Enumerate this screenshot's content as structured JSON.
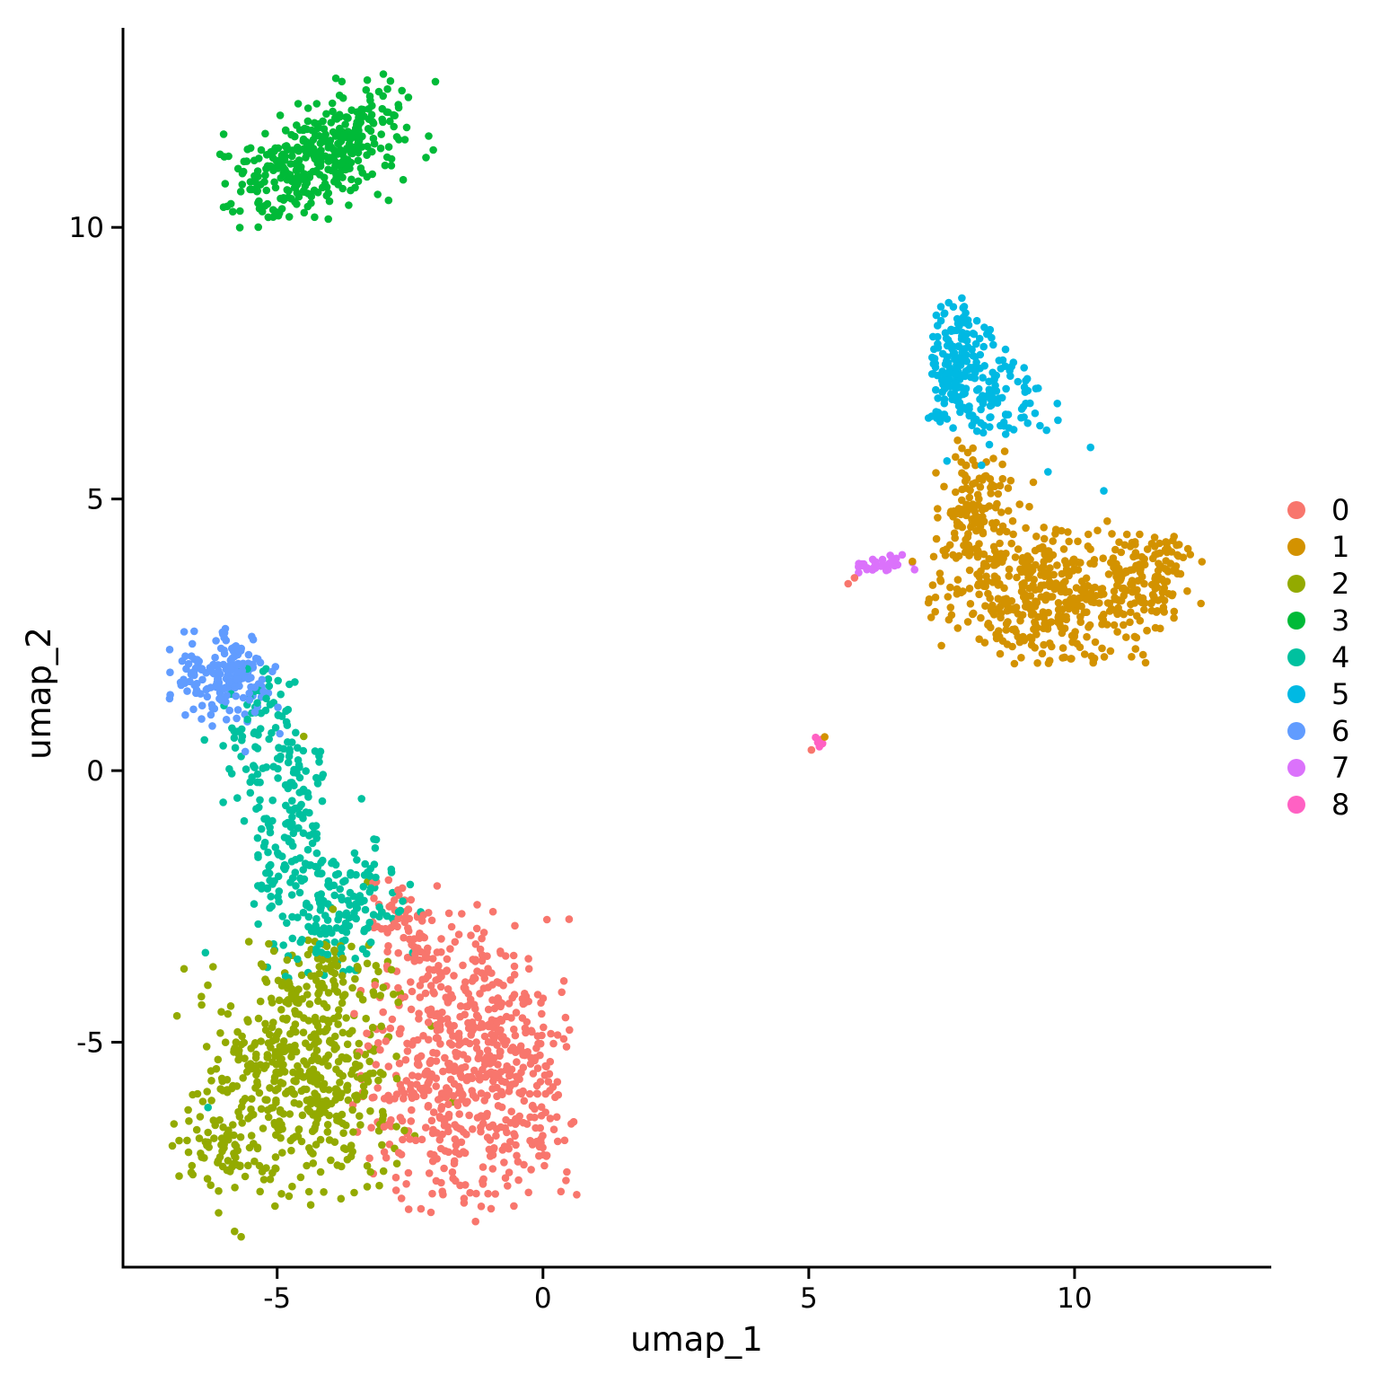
{
  "chart_data": {
    "type": "scatter",
    "title": "",
    "xlabel": "umap_1",
    "ylabel": "umap_2",
    "xlim": [
      -7.9,
      13.7
    ],
    "ylim": [
      -9.14,
      13.64
    ],
    "xticks": [
      -5,
      0,
      5,
      10
    ],
    "yticks": [
      -5,
      0,
      5,
      10
    ],
    "grid": false,
    "background": "#ffffff",
    "axis_color": "#000000",
    "point_radius_px": 4.3,
    "legend_position": "right",
    "legend_title": "",
    "clusters": [
      {
        "label": "0",
        "color": "#F8766D",
        "n": 723,
        "components": [
          {
            "cx": -1.35,
            "cy": -5.6,
            "sx": 1.05,
            "sy": 1.15,
            "rot": 0,
            "n": 600,
            "clip": [
              -3.6,
              0.65,
              -8.35,
              -1.85
            ]
          },
          {
            "cx": -2.6,
            "cy": -2.75,
            "sx": 0.32,
            "sy": 0.55,
            "rot": 20,
            "n": 60,
            "clip": [
              -3.4,
              -1.7,
              -3.9,
              -1.9
            ]
          },
          {
            "cx": -1.6,
            "cy": -3.6,
            "sx": 0.55,
            "sy": 0.5,
            "rot": 0,
            "n": 60,
            "clip": [
              -3.0,
              -0.3,
              -4.8,
              -2.4
            ]
          }
        ],
        "outliers": [
          [
            5.05,
            0.38
          ],
          [
            5.74,
            3.44
          ],
          [
            5.86,
            3.55
          ]
        ]
      },
      {
        "label": "1",
        "color": "#D39200",
        "n": 673,
        "components": [
          {
            "cx": 8.15,
            "cy": 4.9,
            "sx": 0.38,
            "sy": 0.62,
            "rot": 0,
            "n": 120,
            "clip": [
              7.3,
              9.3,
              3.9,
              5.95
            ]
          },
          {
            "cx": 9.5,
            "cy": 3.15,
            "sx": 1.05,
            "sy": 0.68,
            "rot": -8,
            "n": 430,
            "clip": [
              7.2,
              12.0,
              1.95,
              5.2
            ]
          },
          {
            "cx": 11.65,
            "cy": 3.6,
            "sx": 0.6,
            "sy": 0.45,
            "rot": 30,
            "n": 120,
            "clip": [
              10.2,
              12.45,
              2.4,
              4.35
            ]
          }
        ],
        "outliers": [
          [
            5.3,
            0.62
          ],
          [
            6.95,
            3.85
          ],
          [
            7.8,
            6.08
          ]
        ]
      },
      {
        "label": "2",
        "color": "#93AA00",
        "n": 595,
        "components": [
          {
            "cx": -4.6,
            "cy": -5.7,
            "sx": 0.95,
            "sy": 1.0,
            "rot": 0,
            "n": 470,
            "clip": [
              -7.0,
              -2.4,
              -8.6,
              -3.2
            ]
          },
          {
            "cx": -6.05,
            "cy": -6.9,
            "sx": 0.4,
            "sy": 0.45,
            "rot": -30,
            "n": 50,
            "clip": [
              -7.0,
              -5.2,
              -7.8,
              -5.9
            ]
          },
          {
            "cx": -4.1,
            "cy": -3.8,
            "sx": 0.75,
            "sy": 0.45,
            "rot": 0,
            "n": 70,
            "clip": [
              -5.8,
              -2.6,
              -4.6,
              -2.9
            ]
          }
        ],
        "outliers": [
          [
            -3.95,
            -2.55
          ],
          [
            -3.3,
            -2.05
          ],
          [
            -2.1,
            -4.7
          ],
          [
            -1.7,
            -6.1
          ],
          [
            -4.5,
            0.63
          ]
        ]
      },
      {
        "label": "3",
        "color": "#00BA38",
        "n": 390,
        "components": [
          {
            "cx": -4.15,
            "cy": 11.35,
            "sx": 1.0,
            "sy": 0.43,
            "rot": 28,
            "n": 390,
            "clip": [
              -6.25,
              -2.0,
              9.95,
              12.95
            ]
          }
        ],
        "outliers": []
      },
      {
        "label": "4",
        "color": "#00C19F",
        "n": 374,
        "components": [
          {
            "cx": -5.3,
            "cy": 0.75,
            "sx": 0.42,
            "sy": 0.6,
            "rot": 0,
            "n": 70,
            "clip": [
              -6.4,
              -4.3,
              -0.6,
              2.3
            ]
          },
          {
            "cx": -4.75,
            "cy": -0.9,
            "sx": 0.45,
            "sy": 0.85,
            "rot": -12,
            "n": 130,
            "clip": [
              -5.9,
              -3.4,
              -2.6,
              0.9
            ]
          },
          {
            "cx": -3.95,
            "cy": -2.6,
            "sx": 0.62,
            "sy": 0.55,
            "rot": 0,
            "n": 170,
            "clip": [
              -5.6,
              -2.3,
              -3.95,
              -1.2
            ]
          }
        ],
        "outliers": [
          [
            -6.3,
            -6.2
          ],
          [
            -2.45,
            -3.35
          ],
          [
            -2.3,
            -2.6
          ],
          [
            -6.35,
            -3.35
          ]
        ]
      },
      {
        "label": "5",
        "color": "#00B9E3",
        "n": 258,
        "components": [
          {
            "cx": 7.78,
            "cy": 7.55,
            "sx": 0.3,
            "sy": 0.58,
            "rot": 0,
            "n": 140,
            "clip": [
              7.25,
              8.5,
              6.2,
              8.75
            ]
          },
          {
            "cx": 8.2,
            "cy": 6.85,
            "sx": 0.5,
            "sy": 0.45,
            "rot": -25,
            "n": 90,
            "clip": [
              7.3,
              9.5,
              6.0,
              7.8
            ]
          },
          {
            "cx": 8.9,
            "cy": 6.9,
            "sx": 0.45,
            "sy": 0.4,
            "rot": 0,
            "n": 22,
            "clip": [
              8.3,
              9.7,
              5.95,
              7.6
            ]
          }
        ],
        "outliers": [
          [
            10.3,
            5.95
          ],
          [
            10.55,
            5.15
          ],
          [
            9.5,
            5.5
          ],
          [
            8.25,
            5.62
          ],
          [
            7.6,
            5.7
          ],
          [
            9.35,
            6.35
          ]
        ]
      },
      {
        "label": "6",
        "color": "#619CFF",
        "n": 167,
        "components": [
          {
            "cx": -6.0,
            "cy": 1.75,
            "sx": 0.5,
            "sy": 0.42,
            "rot": 0,
            "n": 165,
            "clip": [
              -7.15,
              -4.9,
              0.6,
              2.65
            ]
          }
        ],
        "outliers": [
          [
            -4.95,
            0.68
          ],
          [
            -5.6,
            0.35
          ]
        ]
      },
      {
        "label": "7",
        "color": "#DB72FB",
        "n": 32,
        "components": [
          {
            "cx": 6.32,
            "cy": 3.78,
            "sx": 0.27,
            "sy": 0.07,
            "rot": 8,
            "n": 30,
            "clip": [
              5.88,
              6.8,
              3.55,
              4.0
            ]
          }
        ],
        "outliers": [
          [
            6.95,
            3.83
          ],
          [
            6.99,
            3.7
          ]
        ]
      },
      {
        "label": "8",
        "color": "#FF61C3",
        "n": 5,
        "components": [],
        "outliers": [
          [
            5.17,
            0.52
          ],
          [
            5.23,
            0.57
          ],
          [
            5.13,
            0.61
          ],
          [
            5.2,
            0.44
          ],
          [
            5.26,
            0.5
          ]
        ]
      }
    ]
  }
}
